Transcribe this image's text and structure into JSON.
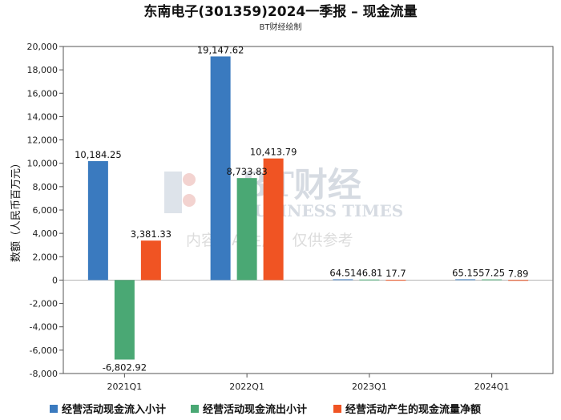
{
  "chart_data": {
    "type": "bar",
    "title": "东南电子(301359)2024一季报 – 现金流量",
    "subtitle": "BT财经绘制",
    "ylabel": "数额（人民币百万元）",
    "xlabel": "",
    "categories": [
      "2021Q1",
      "2022Q1",
      "2023Q1",
      "2024Q1"
    ],
    "series": [
      {
        "name": "经营活动现金流入小计",
        "color": "#3a7abf",
        "values": [
          10184.25,
          19147.62,
          64.51,
          65.15
        ],
        "labels": [
          "10,184.25",
          "19,147.62",
          "64.51",
          "65.15"
        ]
      },
      {
        "name": "经营活动现金流出小计",
        "color": "#4aa874",
        "values": [
          -6802.92,
          8733.83,
          46.81,
          57.25
        ],
        "labels": [
          "-6,802.92",
          "8,733.83",
          "46.81",
          "57.25"
        ]
      },
      {
        "name": "经营活动产生的现金流量净额",
        "color": "#f05423",
        "values": [
          3381.33,
          10413.79,
          17.7,
          7.89
        ],
        "labels": [
          "3,381.33",
          "10,413.79",
          "17.7",
          "7.89"
        ]
      }
    ],
    "ylim": [
      -8000,
      20000
    ],
    "yticks": [
      -8000,
      -6000,
      -4000,
      -2000,
      0,
      2000,
      4000,
      6000,
      8000,
      10000,
      12000,
      14000,
      16000,
      18000,
      20000
    ],
    "ytick_labels": [
      "-8,000",
      "-6,000",
      "-4,000",
      "-2,000",
      "0",
      "2,000",
      "4,000",
      "6,000",
      "8,000",
      "10,000",
      "12,000",
      "14,000",
      "16,000",
      "18,000",
      "20,000"
    ],
    "grid": false,
    "legend_position": "bottom",
    "watermark": {
      "logo": "BT财经",
      "en": "BUSINESS TIMES",
      "note": "内容由AI生成，仅供参考"
    }
  }
}
